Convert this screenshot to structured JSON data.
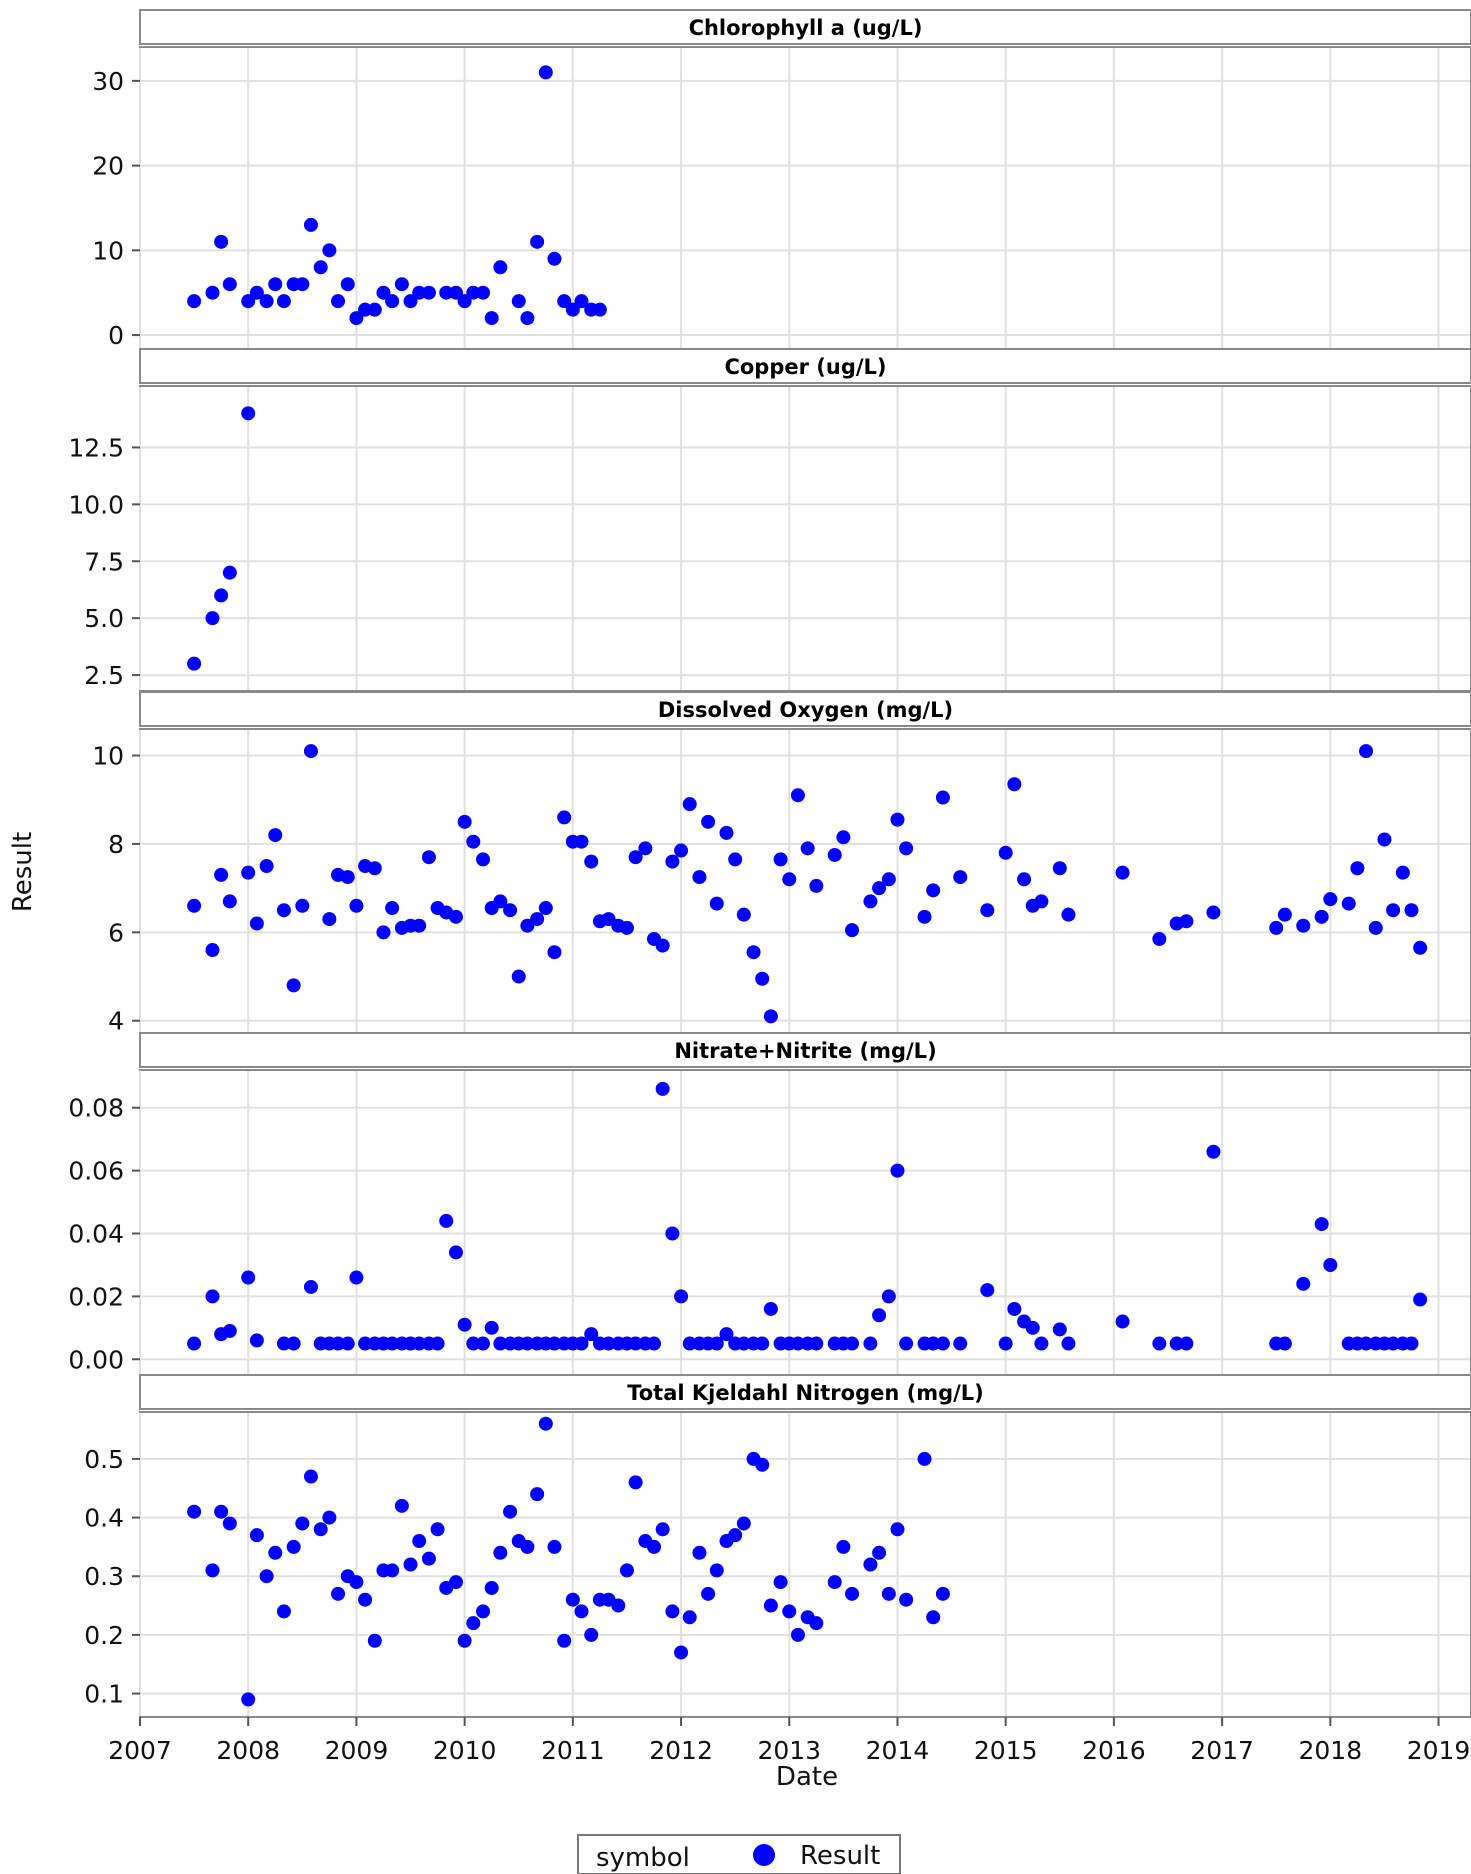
{
  "chart_data": {
    "type": "scatter",
    "xlabel": "Date",
    "ylabel": "Result",
    "x_ticks": [
      "2007",
      "2008",
      "2009",
      "2010",
      "2011",
      "2012",
      "2013",
      "2014",
      "2015",
      "2016",
      "2017",
      "2018",
      "2019"
    ],
    "xlim": [
      2007,
      2019.3
    ],
    "grid": true,
    "legend": {
      "position": "bottom",
      "title": "symbol",
      "entries": [
        "Result"
      ]
    },
    "marker_color": "#0000ff",
    "panels": [
      {
        "title": "Chlorophyll a (ug/L)",
        "ylim": [
          -2,
          34
        ],
        "yticks": [
          "0",
          "10",
          "20",
          "30"
        ],
        "x": [
          2007.5,
          2007.67,
          2007.75,
          2007.83,
          2008.0,
          2008.08,
          2008.17,
          2008.25,
          2008.33,
          2008.42,
          2008.5,
          2008.58,
          2008.67,
          2008.75,
          2008.83,
          2008.92,
          2009.0,
          2009.08,
          2009.17,
          2009.25,
          2009.33,
          2009.42,
          2009.5,
          2009.58,
          2009.67,
          2009.83,
          2009.92,
          2010.0,
          2010.08,
          2010.17,
          2010.25,
          2010.33,
          2010.5,
          2010.58,
          2010.67,
          2010.75,
          2010.83,
          2010.92,
          2011.0,
          2011.08,
          2011.17,
          2011.25
        ],
        "y": [
          4,
          5,
          11,
          6,
          4,
          5,
          4,
          6,
          4,
          6,
          6,
          13,
          8,
          10,
          4,
          6,
          2,
          3,
          3,
          5,
          4,
          6,
          4,
          5,
          5,
          5,
          5,
          4,
          5,
          5,
          2,
          8,
          4,
          2,
          11,
          31,
          9,
          4,
          3,
          4,
          3,
          3
        ]
      },
      {
        "title": "Copper (ug/L)",
        "ylim": [
          1.8,
          15.2
        ],
        "yticks": [
          "2.5",
          "5.0",
          "7.5",
          "10.0",
          "12.5"
        ],
        "x": [
          2007.5,
          2007.67,
          2007.75,
          2007.83,
          2008.0
        ],
        "y": [
          3,
          5,
          6,
          7,
          14
        ]
      },
      {
        "title": "Dissolved Oxygen (mg/L)",
        "ylim": [
          3.7,
          10.6
        ],
        "yticks": [
          "4",
          "6",
          "8",
          "10"
        ],
        "x": [
          2007.5,
          2007.67,
          2007.75,
          2007.83,
          2008.0,
          2008.08,
          2008.17,
          2008.25,
          2008.33,
          2008.42,
          2008.5,
          2008.58,
          2008.75,
          2008.83,
          2008.92,
          2009.0,
          2009.08,
          2009.17,
          2009.25,
          2009.33,
          2009.42,
          2009.5,
          2009.58,
          2009.67,
          2009.75,
          2009.83,
          2009.92,
          2010.0,
          2010.08,
          2010.17,
          2010.25,
          2010.33,
          2010.42,
          2010.5,
          2010.58,
          2010.67,
          2010.75,
          2010.83,
          2010.92,
          2011.0,
          2011.08,
          2011.17,
          2011.25,
          2011.33,
          2011.42,
          2011.5,
          2011.58,
          2011.67,
          2011.75,
          2011.83,
          2011.92,
          2012.0,
          2012.08,
          2012.17,
          2012.25,
          2012.33,
          2012.42,
          2012.5,
          2012.58,
          2012.67,
          2012.75,
          2012.83,
          2012.92,
          2013.0,
          2013.08,
          2013.17,
          2013.25,
          2013.42,
          2013.5,
          2013.58,
          2013.75,
          2013.83,
          2013.92,
          2014.0,
          2014.08,
          2014.25,
          2014.33,
          2014.42,
          2014.58,
          2014.83,
          2015.0,
          2015.08,
          2015.17,
          2015.25,
          2015.33,
          2015.5,
          2015.58,
          2016.08,
          2016.42,
          2016.58,
          2016.67,
          2016.92,
          2017.5,
          2017.58,
          2017.75,
          2017.92,
          2018.0,
          2018.17,
          2018.25,
          2018.33,
          2018.42,
          2018.5,
          2018.58,
          2018.67,
          2018.75,
          2018.83
        ],
        "y": [
          6.6,
          5.6,
          7.3,
          6.7,
          7.35,
          6.2,
          7.5,
          8.2,
          6.5,
          4.8,
          6.6,
          10.1,
          6.3,
          7.3,
          7.25,
          6.6,
          7.5,
          7.45,
          6.0,
          6.55,
          6.1,
          6.15,
          6.15,
          7.7,
          6.55,
          6.45,
          6.35,
          8.5,
          8.05,
          7.65,
          6.55,
          6.7,
          6.5,
          5.0,
          6.15,
          6.3,
          6.55,
          5.55,
          8.6,
          8.05,
          8.05,
          7.6,
          6.25,
          6.3,
          6.15,
          6.1,
          7.7,
          7.9,
          5.85,
          5.7,
          7.6,
          7.85,
          8.9,
          7.25,
          8.5,
          6.65,
          8.25,
          7.65,
          6.4,
          5.55,
          4.95,
          4.1,
          7.65,
          7.2,
          9.1,
          7.9,
          7.05,
          7.75,
          8.15,
          6.05,
          6.7,
          7.0,
          7.2,
          8.55,
          7.9,
          6.35,
          6.95,
          9.05,
          7.25,
          6.5,
          7.8,
          9.35,
          7.2,
          6.6,
          6.7,
          7.45,
          6.4,
          7.35,
          5.85,
          6.2,
          6.25,
          6.45,
          6.1,
          6.4,
          6.15,
          6.35,
          6.75,
          6.65,
          7.45,
          10.1,
          6.1,
          8.1,
          6.5,
          7.35,
          6.5,
          5.65
        ]
      },
      {
        "title": "Nitrate+Nitrite (mg/L)",
        "ylim": [
          -0.005,
          0.092
        ],
        "yticks": [
          "0.00",
          "0.02",
          "0.04",
          "0.06",
          "0.08"
        ],
        "x": [
          2007.5,
          2007.67,
          2007.75,
          2007.83,
          2008.0,
          2008.08,
          2008.33,
          2008.42,
          2008.58,
          2008.67,
          2008.75,
          2008.83,
          2008.92,
          2009.0,
          2009.08,
          2009.17,
          2009.25,
          2009.33,
          2009.42,
          2009.5,
          2009.58,
          2009.67,
          2009.75,
          2009.83,
          2009.92,
          2010.0,
          2010.08,
          2010.17,
          2010.25,
          2010.33,
          2010.42,
          2010.5,
          2010.58,
          2010.67,
          2010.75,
          2010.83,
          2010.92,
          2011.0,
          2011.08,
          2011.17,
          2011.25,
          2011.33,
          2011.42,
          2011.5,
          2011.58,
          2011.67,
          2011.75,
          2011.83,
          2011.92,
          2012.0,
          2012.08,
          2012.17,
          2012.25,
          2012.33,
          2012.42,
          2012.5,
          2012.58,
          2012.67,
          2012.75,
          2012.83,
          2012.92,
          2013.0,
          2013.08,
          2013.17,
          2013.25,
          2013.42,
          2013.5,
          2013.58,
          2013.75,
          2013.83,
          2013.92,
          2014.0,
          2014.08,
          2014.25,
          2014.33,
          2014.42,
          2014.58,
          2014.83,
          2015.0,
          2015.08,
          2015.17,
          2015.25,
          2015.33,
          2015.5,
          2015.58,
          2016.08,
          2016.42,
          2016.58,
          2016.67,
          2016.92,
          2017.5,
          2017.58,
          2017.75,
          2017.92,
          2018.0,
          2018.17,
          2018.25,
          2018.33,
          2018.42,
          2018.5,
          2018.58,
          2018.67,
          2018.75,
          2018.83
        ],
        "y": [
          0.005,
          0.02,
          0.008,
          0.009,
          0.026,
          0.006,
          0.005,
          0.005,
          0.023,
          0.005,
          0.005,
          0.005,
          0.005,
          0.026,
          0.005,
          0.005,
          0.005,
          0.005,
          0.005,
          0.005,
          0.005,
          0.005,
          0.005,
          0.044,
          0.034,
          0.011,
          0.005,
          0.005,
          0.01,
          0.005,
          0.005,
          0.005,
          0.005,
          0.005,
          0.005,
          0.005,
          0.005,
          0.005,
          0.005,
          0.008,
          0.005,
          0.005,
          0.005,
          0.005,
          0.005,
          0.005,
          0.005,
          0.086,
          0.04,
          0.02,
          0.005,
          0.005,
          0.005,
          0.005,
          0.008,
          0.005,
          0.005,
          0.005,
          0.005,
          0.016,
          0.005,
          0.005,
          0.005,
          0.005,
          0.005,
          0.005,
          0.005,
          0.005,
          0.005,
          0.014,
          0.02,
          0.06,
          0.005,
          0.005,
          0.005,
          0.005,
          0.005,
          0.022,
          0.005,
          0.016,
          0.012,
          0.01,
          0.005,
          0.0095,
          0.005,
          0.012,
          0.005,
          0.005,
          0.005,
          0.066,
          0.005,
          0.005,
          0.024,
          0.043,
          0.03,
          0.005,
          0.005,
          0.005,
          0.005,
          0.005,
          0.005,
          0.005,
          0.005,
          0.019
        ]
      },
      {
        "title": "Total Kjeldahl Nitrogen (mg/L)",
        "ylim": [
          0.06,
          0.58
        ],
        "yticks": [
          "0.1",
          "0.2",
          "0.3",
          "0.4",
          "0.5"
        ],
        "x": [
          2007.5,
          2007.67,
          2007.75,
          2007.83,
          2008.0,
          2008.08,
          2008.17,
          2008.25,
          2008.33,
          2008.42,
          2008.5,
          2008.58,
          2008.67,
          2008.75,
          2008.83,
          2008.92,
          2009.0,
          2009.08,
          2009.17,
          2009.25,
          2009.33,
          2009.42,
          2009.5,
          2009.58,
          2009.67,
          2009.75,
          2009.83,
          2009.92,
          2010.0,
          2010.08,
          2010.17,
          2010.25,
          2010.33,
          2010.42,
          2010.5,
          2010.58,
          2010.67,
          2010.75,
          2010.83,
          2010.92,
          2011.0,
          2011.08,
          2011.17,
          2011.25,
          2011.33,
          2011.42,
          2011.5,
          2011.58,
          2011.67,
          2011.75,
          2011.83,
          2011.92,
          2012.0,
          2012.08,
          2012.17,
          2012.25,
          2012.33,
          2012.42,
          2012.5,
          2012.58,
          2012.67,
          2012.75,
          2012.83,
          2012.92,
          2013.0,
          2013.08,
          2013.17,
          2013.25,
          2013.42,
          2013.5,
          2013.58,
          2013.75,
          2013.83,
          2013.92,
          2014.0,
          2014.08,
          2014.25,
          2014.33,
          2014.42
        ],
        "y": [
          0.41,
          0.31,
          0.41,
          0.39,
          0.09,
          0.37,
          0.3,
          0.34,
          0.24,
          0.35,
          0.39,
          0.47,
          0.38,
          0.4,
          0.27,
          0.3,
          0.29,
          0.26,
          0.19,
          0.31,
          0.31,
          0.42,
          0.32,
          0.36,
          0.33,
          0.38,
          0.28,
          0.29,
          0.19,
          0.22,
          0.24,
          0.28,
          0.34,
          0.41,
          0.36,
          0.35,
          0.44,
          0.56,
          0.35,
          0.19,
          0.26,
          0.24,
          0.2,
          0.26,
          0.26,
          0.25,
          0.31,
          0.46,
          0.36,
          0.35,
          0.38,
          0.24,
          0.17,
          0.23,
          0.34,
          0.27,
          0.31,
          0.36,
          0.37,
          0.39,
          0.5,
          0.49,
          0.25,
          0.29,
          0.24,
          0.2,
          0.23,
          0.22,
          0.29,
          0.35,
          0.27,
          0.32,
          0.34,
          0.27,
          0.38,
          0.26,
          0.5,
          0.23,
          0.27
        ]
      }
    ]
  }
}
